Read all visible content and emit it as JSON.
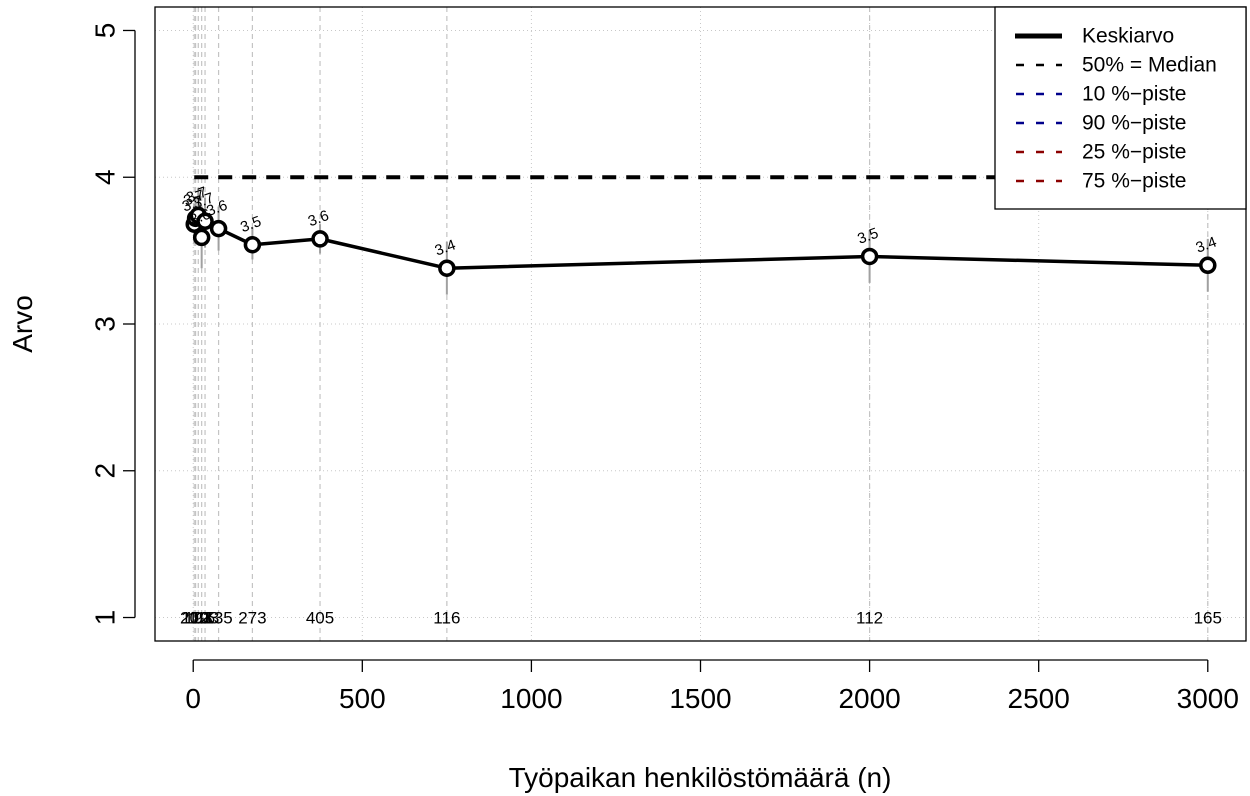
{
  "chart_data": {
    "type": "line",
    "title": "",
    "xlabel": "Työpaikan henkilöstömäärä (n)",
    "ylabel": "Arvo",
    "xlim": [
      -113,
      3113
    ],
    "ylim": [
      0.84,
      5.16
    ],
    "x_ticks": [
      "0",
      "500",
      "1000",
      "1500",
      "2000",
      "2500",
      "3000"
    ],
    "y_ticks": [
      "1",
      "2",
      "3",
      "4",
      "5"
    ],
    "grid": true,
    "legend_position": "top-right",
    "legend": [
      {
        "label": "Keskiarvo",
        "color": "#000000",
        "style": "solid"
      },
      {
        "label": "50% = Median",
        "color": "#000000",
        "style": "dashed"
      },
      {
        "label": "10 %−piste",
        "color": "#00008b",
        "style": "dashed"
      },
      {
        "label": "90 %−piste",
        "color": "#00008b",
        "style": "dashed"
      },
      {
        "label": "25 %−piste",
        "color": "#8b0000",
        "style": "dashed"
      },
      {
        "label": "75 %−piste",
        "color": "#8b0000",
        "style": "dashed"
      }
    ],
    "x": [
      3,
      7,
      15,
      25,
      35,
      75,
      175,
      375,
      750,
      2000,
      3000
    ],
    "series": [
      {
        "name": "Keskiarvo",
        "values": [
          3.68,
          3.72,
          3.74,
          3.59,
          3.7,
          3.65,
          3.54,
          3.58,
          3.38,
          3.46,
          3.4
        ],
        "value_labels": [
          "3.7",
          "3.7",
          "3.7",
          "3.6",
          "3.7",
          "3.6",
          "3.5",
          "3.6",
          "3.4",
          "3.5",
          "3.4"
        ]
      },
      {
        "name": "50% = Median",
        "values": [
          4,
          4,
          4,
          4,
          4,
          4,
          4,
          4,
          4,
          4,
          4
        ]
      }
    ],
    "error_bars": {
      "low": [
        3.55,
        3.57,
        3.55,
        3.38,
        3.52,
        3.5,
        3.44,
        3.48,
        3.2,
        3.28,
        3.22
      ],
      "high": [
        3.82,
        3.87,
        3.92,
        3.8,
        3.86,
        3.8,
        3.66,
        3.68,
        3.56,
        3.64,
        3.58
      ]
    },
    "counts": [
      "209",
      "170",
      "193",
      "115",
      "123",
      "135",
      "273",
      "405",
      "116",
      "112",
      "165"
    ],
    "count_label_y": 1
  }
}
